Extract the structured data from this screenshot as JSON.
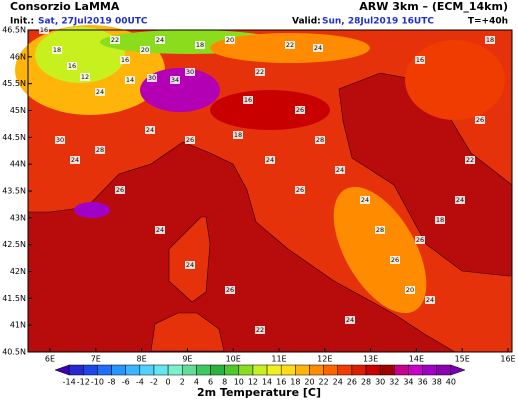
{
  "header": {
    "org": "Consorzio LaMMA",
    "model": "ARW 3km – (ECM_14km)",
    "init_label": "Init.:",
    "init": "Sat, 27Jul2019 00UTC",
    "valid_label": "Valid:",
    "valid": "Sun, 28Jul2019 16UTC",
    "lead": "T=+40h"
  },
  "map": {
    "lat_labels": [
      "46.5N",
      "46N",
      "45.5N",
      "45N",
      "44.5N",
      "44N",
      "43.5N",
      "43N",
      "42.5N",
      "42N",
      "41.5N",
      "41N",
      "40.5N"
    ],
    "lon_labels": [
      "6E",
      "7E",
      "8E",
      "9E",
      "10E",
      "11E",
      "12E",
      "13E",
      "14E",
      "15E",
      "16E"
    ],
    "stations": [
      16,
      18,
      16,
      12,
      24,
      22,
      16,
      14,
      20,
      24,
      30,
      34,
      30,
      18,
      20,
      24,
      26,
      18,
      16,
      22,
      22,
      24,
      26,
      28,
      24,
      26,
      24,
      24,
      28,
      26,
      20,
      24,
      26,
      18,
      24,
      22,
      26,
      30,
      24,
      28,
      26,
      24,
      24,
      26,
      22,
      24,
      16,
      18
    ]
  },
  "colorbar": {
    "title": "2m Temperature [C]",
    "ticks": [
      -14,
      -12,
      -10,
      -8,
      -6,
      -4,
      -2,
      0,
      2,
      4,
      6,
      8,
      10,
      12,
      14,
      16,
      18,
      20,
      22,
      24,
      26,
      28,
      30,
      32,
      34,
      36,
      38,
      40
    ],
    "colors": [
      "#3c00b4",
      "#2828d0",
      "#1e46e6",
      "#1e6efa",
      "#2896ff",
      "#3cb4ff",
      "#50d2ff",
      "#64e6f0",
      "#78f0c8",
      "#64dc96",
      "#3cc864",
      "#28b43c",
      "#50c828",
      "#8cdc1e",
      "#c8f01e",
      "#f0f01e",
      "#ffdc14",
      "#ffb40a",
      "#ff8c00",
      "#ff6400",
      "#f03c00",
      "#dc1e00",
      "#c80000",
      "#a00000",
      "#c8008c",
      "#c800c8",
      "#a000c8",
      "#8c00b4",
      "#7800b4"
    ]
  }
}
